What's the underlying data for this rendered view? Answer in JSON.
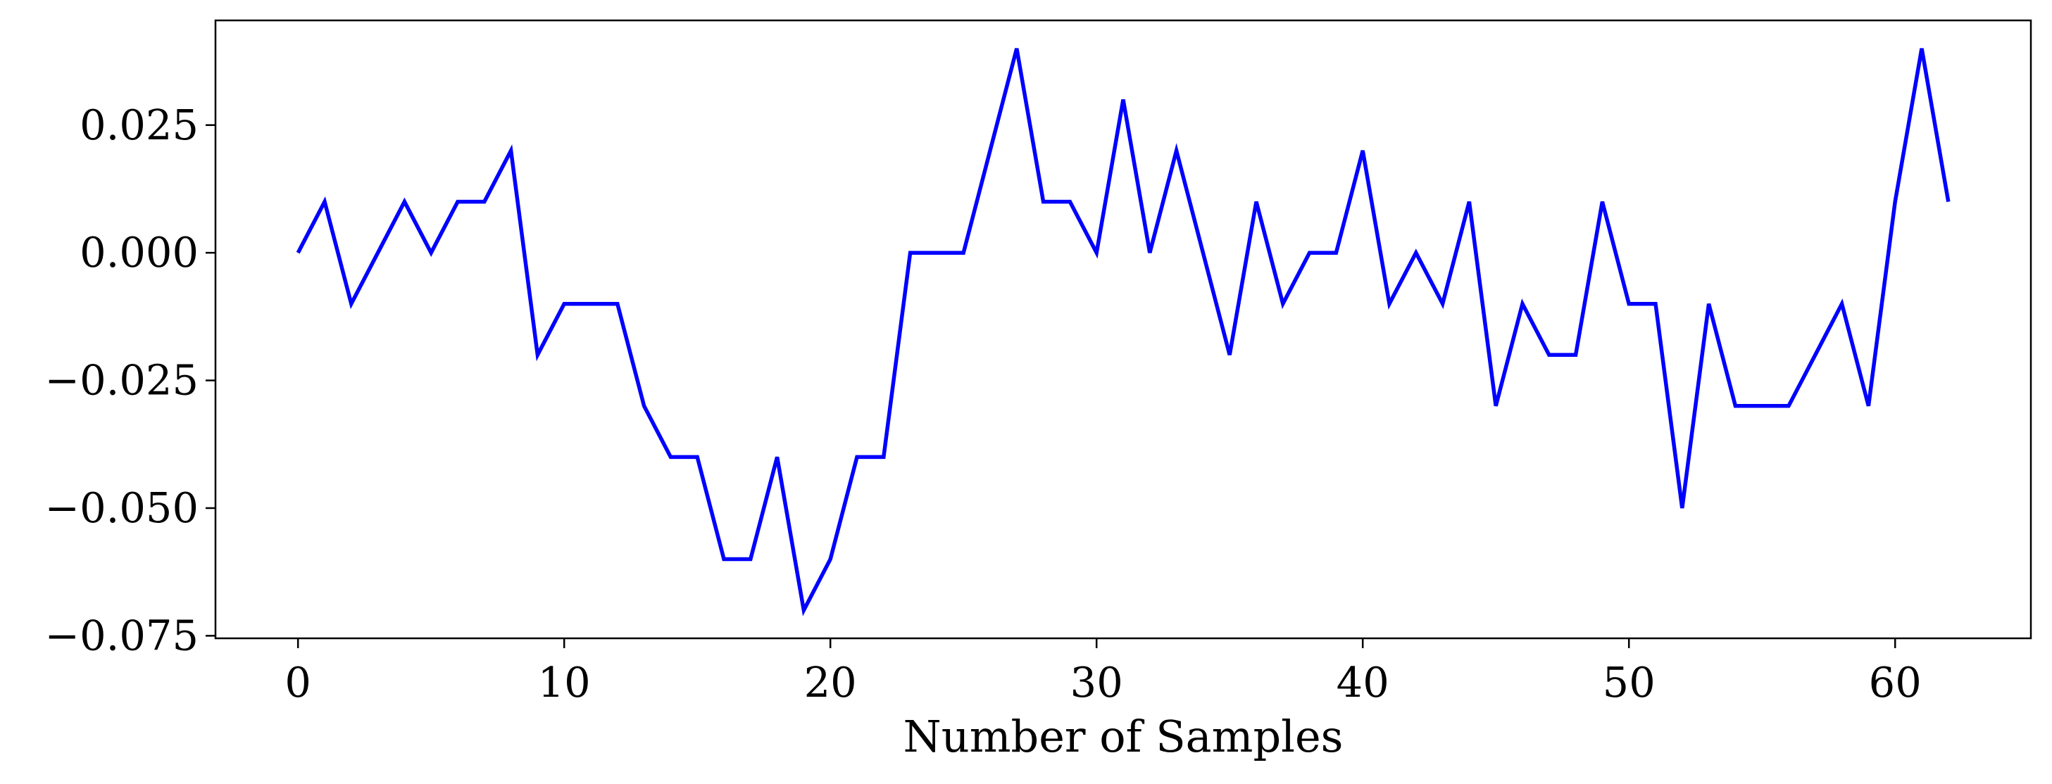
{
  "chart_data": {
    "type": "line",
    "title": "",
    "xlabel": "Number of Samples",
    "ylabel": "",
    "xlim": [
      -3.1,
      65.1
    ],
    "ylim": [
      -0.0755,
      0.0455
    ],
    "x_ticks": [
      0,
      10,
      20,
      30,
      40,
      50,
      60
    ],
    "x_tick_labels": [
      "0",
      "10",
      "20",
      "30",
      "40",
      "50",
      "60"
    ],
    "y_ticks": [
      0.025,
      0.0,
      -0.025,
      -0.05,
      -0.075
    ],
    "y_tick_labels": [
      "0.025",
      "0.000",
      "−0.025",
      "−0.050",
      "−0.075"
    ],
    "grid": false,
    "legend": "none",
    "series": [
      {
        "color": "#0000ff",
        "x": [
          0,
          1,
          2,
          3,
          4,
          5,
          6,
          7,
          8,
          9,
          10,
          11,
          12,
          13,
          14,
          15,
          16,
          17,
          18,
          19,
          20,
          21,
          22,
          23,
          24,
          25,
          26,
          27,
          28,
          29,
          30,
          31,
          32,
          33,
          34,
          35,
          36,
          37,
          38,
          39,
          40,
          41,
          42,
          43,
          44,
          45,
          46,
          47,
          48,
          49,
          50,
          51,
          52,
          53,
          54,
          55,
          56,
          57,
          58,
          59,
          60,
          61,
          62
        ],
        "values": [
          0.0,
          0.01,
          -0.01,
          0.0,
          0.01,
          0.0,
          0.01,
          0.01,
          0.02,
          -0.02,
          -0.01,
          -0.01,
          -0.01,
          -0.03,
          -0.04,
          -0.04,
          -0.06,
          -0.06,
          -0.04,
          -0.07,
          -0.06,
          -0.04,
          -0.04,
          0.0,
          0.0,
          0.0,
          0.02,
          0.04,
          0.01,
          0.01,
          0.0,
          0.03,
          0.0,
          0.02,
          0.0,
          -0.02,
          0.01,
          -0.01,
          0.0,
          0.0,
          0.02,
          -0.01,
          0.0,
          -0.01,
          0.01,
          -0.03,
          -0.01,
          -0.02,
          -0.02,
          0.01,
          -0.01,
          -0.01,
          -0.05,
          -0.01,
          -0.03,
          -0.03,
          -0.03,
          -0.02,
          -0.01,
          -0.03,
          0.01,
          0.04,
          0.01
        ]
      }
    ]
  }
}
